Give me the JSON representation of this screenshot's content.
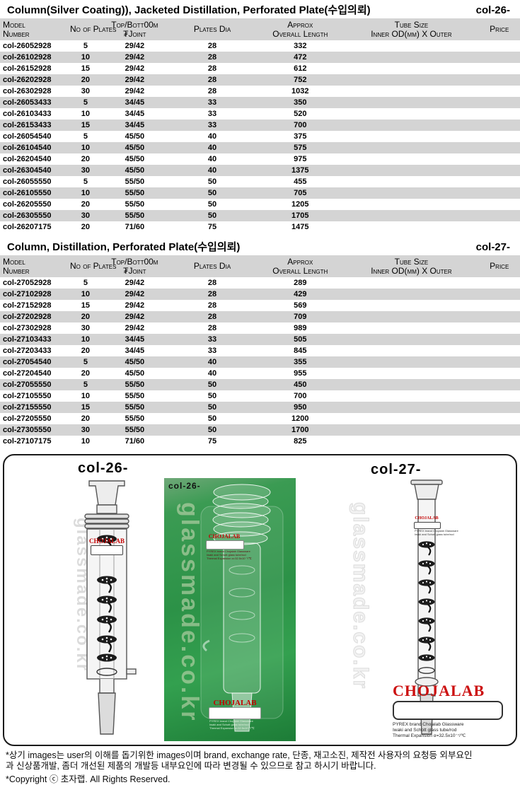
{
  "tables": [
    {
      "title": "Column(Silver Coating)), Jacketed Distillation, Perforated Plate(수입의뢰)",
      "code": "col-26-",
      "columns": [
        {
          "l1": "Model",
          "l2": "Number"
        },
        {
          "l1": "No of Plates",
          "l2": ""
        },
        {
          "l1": "Top/Bott00m",
          "l2": "₮Joint"
        },
        {
          "l1": "Plates Dia",
          "l2": ""
        },
        {
          "l1": "Approx",
          "l2": "Overall Length"
        },
        {
          "l1": "Tube Size",
          "l2": "Inner OD(mm) X Outer"
        },
        {
          "l1": "Price",
          "l2": ""
        }
      ],
      "rows": [
        [
          "col-26052928",
          "5",
          "29/42",
          "28",
          "332",
          "",
          ""
        ],
        [
          "col-26102928",
          "10",
          "29/42",
          "28",
          "472",
          "",
          ""
        ],
        [
          "col-26152928",
          "15",
          "29/42",
          "28",
          "612",
          "",
          ""
        ],
        [
          "col-26202928",
          "20",
          "29/42",
          "28",
          "752",
          "",
          ""
        ],
        [
          "col-26302928",
          "30",
          "29/42",
          "28",
          "1032",
          "",
          ""
        ],
        [
          "col-26053433",
          "5",
          "34/45",
          "33",
          "350",
          "",
          ""
        ],
        [
          "col-26103433",
          "10",
          "34/45",
          "33",
          "520",
          "",
          ""
        ],
        [
          "col-26153433",
          "15",
          "34/45",
          "33",
          "700",
          "",
          ""
        ],
        [
          "col-26054540",
          "5",
          "45/50",
          "40",
          "375",
          "",
          ""
        ],
        [
          "col-26104540",
          "10",
          "45/50",
          "40",
          "575",
          "",
          ""
        ],
        [
          "col-26204540",
          "20",
          "45/50",
          "40",
          "975",
          "",
          ""
        ],
        [
          "col-26304540",
          "30",
          "45/50",
          "40",
          "1375",
          "",
          ""
        ],
        [
          "col-26055550",
          "5",
          "55/50",
          "50",
          "455",
          "",
          ""
        ],
        [
          "col-26105550",
          "10",
          "55/50",
          "50",
          "705",
          "",
          ""
        ],
        [
          "col-26205550",
          "20",
          "55/50",
          "50",
          "1205",
          "",
          ""
        ],
        [
          "col-26305550",
          "30",
          "55/50",
          "50",
          "1705",
          "",
          ""
        ],
        [
          "col-26207175",
          "20",
          "71/60",
          "75",
          "1475",
          "",
          ""
        ]
      ]
    },
    {
      "title": "Column, Distillation, Perforated Plate(수입의뢰)",
      "code": "col-27-",
      "columns": [
        {
          "l1": "Model",
          "l2": "Number"
        },
        {
          "l1": "No of Plates",
          "l2": ""
        },
        {
          "l1": "Top/Bott00m",
          "l2": "₮Joint"
        },
        {
          "l1": "Plates Dia",
          "l2": ""
        },
        {
          "l1": "Approx",
          "l2": "Overall Length"
        },
        {
          "l1": "Tube Size",
          "l2": "Inner OD(mm) X Outer"
        },
        {
          "l1": "Price",
          "l2": ""
        }
      ],
      "rows": [
        [
          "col-27052928",
          "5",
          "29/42",
          "28",
          "289",
          "",
          ""
        ],
        [
          "col-27102928",
          "10",
          "29/42",
          "28",
          "429",
          "",
          ""
        ],
        [
          "col-27152928",
          "15",
          "29/42",
          "28",
          "569",
          "",
          ""
        ],
        [
          "col-27202928",
          "20",
          "29/42",
          "28",
          "709",
          "",
          ""
        ],
        [
          "col-27302928",
          "30",
          "29/42",
          "28",
          "989",
          "",
          ""
        ],
        [
          "col-27103433",
          "10",
          "34/45",
          "33",
          "505",
          "",
          ""
        ],
        [
          "col-27203433",
          "20",
          "34/45",
          "33",
          "845",
          "",
          ""
        ],
        [
          "col-27054540",
          "5",
          "45/50",
          "40",
          "355",
          "",
          ""
        ],
        [
          "col-27204540",
          "20",
          "45/50",
          "40",
          "955",
          "",
          ""
        ],
        [
          "col-27055550",
          "5",
          "55/50",
          "50",
          "450",
          "",
          ""
        ],
        [
          "col-27105550",
          "10",
          "55/50",
          "50",
          "700",
          "",
          ""
        ],
        [
          "col-27155550",
          "15",
          "55/50",
          "50",
          "950",
          "",
          ""
        ],
        [
          "col-27205550",
          "20",
          "55/50",
          "50",
          "1200",
          "",
          ""
        ],
        [
          "col-27305550",
          "30",
          "55/50",
          "50",
          "1700",
          "",
          ""
        ],
        [
          "col-27107175",
          "10",
          "71/60",
          "75",
          "825",
          "",
          ""
        ]
      ]
    }
  ],
  "panel": {
    "left_label": "col-26-",
    "right_label": "col-27-",
    "photo_label": "col-26-",
    "watermark": "glassmade.co.kr",
    "brand": {
      "name": "CHOJALAB",
      "lines": [
        "PYREX brand Chojalab Glassware",
        "Iwaki and Schott glass tube/rod",
        "Thermal Expansion α=32.5x10⁻⁷/℃"
      ]
    },
    "colors": {
      "accent_red": "#cc1111",
      "photo_green": "#2c9247",
      "table_stripe": "#d4d4d4"
    }
  },
  "footer": {
    "line1": "*상기 images는 user의 이해를 돕기위한 images이며 brand, exchange rate, 단종, 재고소진, 제작전 사용자의 요청등 외부요인",
    "line2": "과 신상품개발, 좀더 개선된 제품의 개발등 내부요인에 따라 변경될 수 있으므로 참고 하시기 바랍니다.",
    "line3": "*Copyright ⓒ 초자랩.      All Rights Reserved."
  }
}
